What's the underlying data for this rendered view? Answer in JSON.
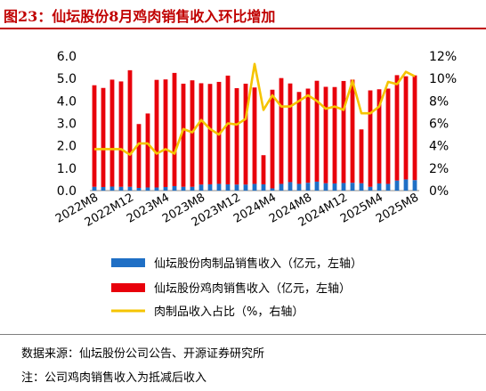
{
  "title": "图23：仙坛股份8月鸡肉销售收入环比增加",
  "source": "数据来源：仙坛股份公司公告、开源证券研究所",
  "note": "注：公司鸡肉销售收入为抵减后收入",
  "colors": {
    "meat_products": "#1f6fc5",
    "chicken": "#e8000b",
    "ratio": "#f5c400",
    "title": "#c00000"
  },
  "chart_data": {
    "type": "bar",
    "categories": [
      "2022M8",
      "2022M9",
      "2022M10",
      "2022M11",
      "2022M12",
      "2023M1",
      "2023M2",
      "2023M3",
      "2023M4",
      "2023M5",
      "2023M6",
      "2023M7",
      "2023M8",
      "2023M9",
      "2023M10",
      "2023M11",
      "2023M12",
      "2024M1",
      "2024M2",
      "2024M3",
      "2024M4",
      "2024M5",
      "2024M6",
      "2024M7",
      "2024M8",
      "2024M9",
      "2024M10",
      "2024M11",
      "2024M12",
      "2025M1",
      "2025M2",
      "2025M3",
      "2025M4",
      "2025M5",
      "2025M6",
      "2025M7",
      "2025M8"
    ],
    "x_tick_labels": [
      "2022M8",
      "2022M12",
      "2023M4",
      "2023M8",
      "2023M12",
      "2024M4",
      "2024M8",
      "2024M12",
      "2025M4",
      "2025M8"
    ],
    "y_left_ticks": [
      "0.0",
      "1.0",
      "2.0",
      "3.0",
      "4.0",
      "5.0",
      "6.0"
    ],
    "y_right_ticks": [
      "0%",
      "2%",
      "4%",
      "6%",
      "8%",
      "10%",
      "12%"
    ],
    "ylim_left": [
      0,
      6
    ],
    "ylim_right": [
      0,
      12
    ],
    "series": [
      {
        "name": "仙坛股份肉制品销售收入（亿元，左轴）",
        "axis": "left",
        "type": "bar",
        "values": [
          0.17,
          0.16,
          0.18,
          0.17,
          0.17,
          0.12,
          0.14,
          0.14,
          0.16,
          0.2,
          0.17,
          0.17,
          0.27,
          0.28,
          0.3,
          0.28,
          0.27,
          0.27,
          0.3,
          0.28,
          0.1,
          0.3,
          0.38,
          0.3,
          0.35,
          0.4,
          0.33,
          0.32,
          0.34,
          0.35,
          0.33,
          0.17,
          0.32,
          0.3,
          0.45,
          0.5,
          0.47
        ]
      },
      {
        "name": "仙坛股份鸡肉销售收入（亿元，左轴）",
        "axis": "left",
        "type": "bar",
        "values": [
          4.53,
          4.42,
          4.77,
          4.7,
          5.2,
          2.85,
          3.3,
          4.8,
          4.8,
          5.05,
          4.6,
          4.75,
          4.52,
          4.48,
          4.55,
          4.85,
          4.3,
          4.5,
          4.3,
          1.3,
          4.4,
          4.72,
          4.4,
          4.1,
          4.2,
          4.5,
          4.3,
          4.3,
          4.55,
          4.6,
          2.4,
          4.3,
          4.2,
          4.25,
          4.7,
          4.6,
          4.67
        ]
      },
      {
        "name": "肉制品收入占比（%，右轴）",
        "axis": "right",
        "type": "line",
        "values": [
          3.7,
          3.7,
          3.7,
          3.7,
          3.2,
          4.2,
          4.2,
          3.3,
          3.7,
          3.3,
          5.5,
          5.2,
          6.3,
          5.5,
          5.0,
          6.0,
          5.9,
          6.4,
          11.3,
          7.2,
          8.5,
          7.5,
          7.5,
          8.0,
          8.5,
          8.0,
          7.3,
          7.5,
          7.2,
          9.8,
          6.9,
          6.9,
          7.5,
          9.7,
          9.5,
          10.6,
          10.2
        ]
      }
    ]
  }
}
